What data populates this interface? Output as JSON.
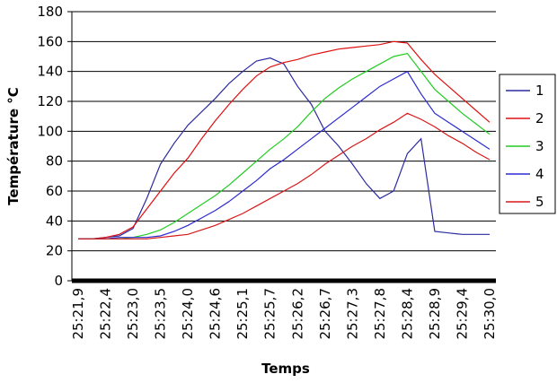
{
  "chart_data": {
    "type": "line",
    "x_label": "Temps",
    "y_label": "Température °C",
    "categories": [
      "25:21,9",
      null,
      "25:22,4",
      null,
      "25:23,0",
      null,
      "25:23,5",
      null,
      "25:24,0",
      null,
      "25:24,6",
      null,
      "25:25,1",
      null,
      "25:25,7",
      null,
      "25:26,2",
      null,
      "25:26,7",
      null,
      "25:27,3",
      null,
      "25:27,8",
      null,
      "25:28,4",
      null,
      "25:28,9",
      null,
      "25:29,4",
      null,
      "25:30,0"
    ],
    "series": [
      {
        "name": "1",
        "color": "#2b2ba0",
        "values": [
          28,
          28,
          29,
          30,
          35,
          55,
          78,
          92,
          104,
          113,
          122,
          132,
          140,
          147,
          149,
          145,
          130,
          118,
          100,
          90,
          78,
          65,
          55,
          60,
          85,
          95,
          33,
          32,
          31,
          31,
          31
        ]
      },
      {
        "name": "2",
        "color": "#e01010",
        "values": [
          28,
          28,
          29,
          31,
          36,
          48,
          60,
          72,
          82,
          95,
          107,
          118,
          128,
          137,
          143,
          146,
          148,
          151,
          153,
          155,
          156,
          157,
          158,
          160,
          159,
          148,
          138,
          130,
          122,
          114,
          106
        ]
      },
      {
        "name": "3",
        "color": "#22cc22",
        "values": [
          28,
          28,
          28,
          28,
          29,
          31,
          34,
          39,
          45,
          51,
          57,
          64,
          72,
          80,
          88,
          95,
          103,
          113,
          122,
          129,
          135,
          140,
          145,
          150,
          152,
          140,
          128,
          120,
          112,
          105,
          98
        ]
      },
      {
        "name": "4",
        "color": "#2b2bd0",
        "values": [
          28,
          28,
          28,
          29,
          29,
          29,
          30,
          33,
          37,
          42,
          47,
          53,
          60,
          67,
          75,
          81,
          88,
          95,
          102,
          109,
          116,
          123,
          130,
          135,
          140,
          125,
          112,
          106,
          100,
          94,
          88
        ]
      },
      {
        "name": "5",
        "color": "#d81818",
        "values": [
          28,
          28,
          28,
          28,
          28,
          28,
          29,
          30,
          31,
          34,
          37,
          41,
          45,
          50,
          55,
          60,
          65,
          71,
          78,
          84,
          90,
          95,
          101,
          106,
          112,
          108,
          103,
          97,
          92,
          86,
          81
        ]
      }
    ],
    "ylim": [
      0,
      180
    ],
    "yticks": [
      0,
      20,
      40,
      60,
      80,
      100,
      120,
      140,
      160,
      180
    ],
    "grid": true,
    "legend": "right"
  }
}
